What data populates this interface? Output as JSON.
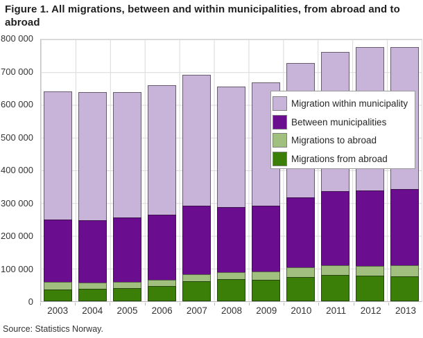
{
  "chart_data": {
    "type": "bar",
    "stacked": true,
    "title": "Figure 1. All migrations, between and within municipalities, from abroad and to abroad",
    "source": "Source: Statistics Norway.",
    "categories": [
      "2003",
      "2004",
      "2005",
      "2006",
      "2007",
      "2008",
      "2009",
      "2010",
      "2011",
      "2012",
      "2013"
    ],
    "series": [
      {
        "name": "Migrations from abroad",
        "color": "#3C7F08",
        "values": [
          36000,
          37000,
          40000,
          46000,
          62000,
          67000,
          65000,
          74000,
          80000,
          78000,
          76000
        ]
      },
      {
        "name": "Migrations to abroad",
        "color": "#A1C07F",
        "values": [
          25000,
          23000,
          22000,
          22000,
          22000,
          24000,
          27000,
          32000,
          32000,
          31000,
          36000
        ]
      },
      {
        "name": "Between municipalities",
        "color": "#6B0D8F",
        "values": [
          191000,
          191000,
          196000,
          200000,
          210000,
          199000,
          202000,
          214000,
          226000,
          233000,
          234000
        ]
      },
      {
        "name": "Migration within municipality",
        "color": "#C9B4D9",
        "values": [
          392000,
          392000,
          385000,
          396000,
          400000,
          368000,
          378000,
          411000,
          427000,
          436000,
          433000
        ]
      }
    ],
    "totals": [
      644000,
      643000,
      643000,
      664000,
      694000,
      658000,
      672000,
      731000,
      765000,
      778000,
      779000
    ],
    "ylim": [
      0,
      800000
    ],
    "y_tick_step": 100000,
    "y_ticks": [
      "800 000",
      "700 000",
      "600 000",
      "500 000",
      "400 000",
      "300 000",
      "200 000",
      "100 000",
      "0"
    ],
    "grid": true,
    "legend_position": "inside-top-right",
    "legend_order_top_to_bottom": [
      "Migration within municipality",
      "Between municipalities",
      "Migrations to abroad",
      "Migrations from abroad"
    ]
  }
}
